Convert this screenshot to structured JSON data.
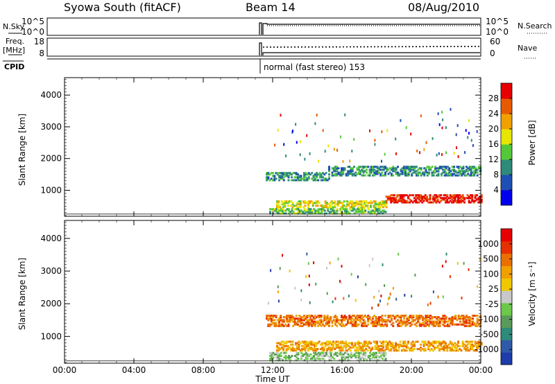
{
  "header": {
    "station": "Syowa South (fitACF)",
    "beam": "Beam 14",
    "date": "08/Aug/2010"
  },
  "status_panels": {
    "nsky_label": "N.Sky",
    "nsky_ticks": [
      "10^5",
      "10^0"
    ],
    "nsearch_label": "N.Search",
    "nsearch_ticks": [
      "10^5",
      "10^0"
    ],
    "freq_label": "Freq.",
    "freq_unit": "[MHz]",
    "freq_ticks": [
      "18",
      "8"
    ],
    "nave_label": "Nave",
    "nave_ticks": [
      "60",
      "0"
    ],
    "cpid_label": "CPID",
    "cpid_text": "normal (fast stereo) 153"
  },
  "chart_data": [
    {
      "type": "heatmap",
      "title": "",
      "xlabel": "Time UT",
      "ylabel": "Slant Range [km]",
      "x_ticks": [
        "00:00",
        "04:00",
        "08:00",
        "12:00",
        "16:00",
        "20:00",
        "00:00"
      ],
      "x_tick_hours": [
        0,
        4,
        8,
        12,
        16,
        20,
        24
      ],
      "xlim_hours": [
        0,
        24
      ],
      "y_ticks": [
        1000,
        2000,
        3000,
        4000
      ],
      "ylim": [
        180,
        4550
      ],
      "colorbar": {
        "label": "Power [dB]",
        "ticks": [
          "4",
          "8",
          "12",
          "16",
          "20",
          "24",
          "28"
        ],
        "colors": [
          "#0000ee",
          "#1e4fb4",
          "#2e8a7a",
          "#55c83a",
          "#e6e600",
          "#f0a000",
          "#e85a00",
          "#e60000"
        ]
      },
      "echo_regions": [
        {
          "t0": 11.6,
          "t1": 15.2,
          "r0": 1350,
          "r1": 1600,
          "level": 2
        },
        {
          "t0": 15.2,
          "t1": 24.0,
          "r0": 1500,
          "r1": 1800,
          "level": 2
        },
        {
          "t0": 12.2,
          "t1": 18.5,
          "r0": 500,
          "r1": 700,
          "level": 4
        },
        {
          "t0": 18.5,
          "t1": 24.0,
          "r0": 650,
          "r1": 900,
          "level": 7
        },
        {
          "t0": 11.8,
          "t1": 18.5,
          "r0": 300,
          "r1": 450,
          "level": 3
        }
      ]
    },
    {
      "type": "heatmap",
      "title": "",
      "xlabel": "Time UT",
      "ylabel": "Slant Range [km]",
      "x_ticks": [
        "00:00",
        "04:00",
        "08:00",
        "12:00",
        "16:00",
        "20:00",
        "00:00"
      ],
      "x_tick_hours": [
        0,
        4,
        8,
        12,
        16,
        20,
        24
      ],
      "xlim_hours": [
        0,
        24
      ],
      "y_ticks": [
        1000,
        2000,
        3000,
        4000
      ],
      "ylim": [
        180,
        4550
      ],
      "colorbar": {
        "label": "Velocity [m s⁻¹]",
        "ticks": [
          "1000",
          "500",
          "100",
          "25",
          "-25",
          "-100",
          "-500",
          "-1000"
        ],
        "colors": [
          "#1e3caa",
          "#2e5aa8",
          "#2e8a7a",
          "#5a9a5a",
          "#6cc84a",
          "#c8c8c8",
          "#f0c800",
          "#f0a000",
          "#e87000",
          "#e63000",
          "#e60000"
        ]
      },
      "echo_regions": [
        {
          "t0": 11.6,
          "t1": 24.0,
          "r0": 1350,
          "r1": 1700,
          "level": 8
        },
        {
          "t0": 12.2,
          "t1": 24.0,
          "r0": 600,
          "r1": 900,
          "level": 7
        },
        {
          "t0": 11.8,
          "t1": 18.5,
          "r0": 300,
          "r1": 550,
          "level": 4
        }
      ]
    }
  ]
}
